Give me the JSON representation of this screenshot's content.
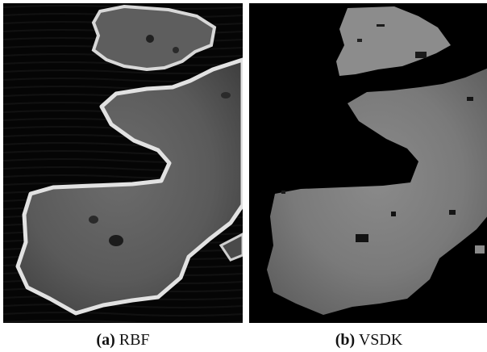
{
  "figure": {
    "panels": [
      {
        "id": "a",
        "tag": "(a)",
        "label": "RBF"
      },
      {
        "id": "b",
        "tag": "(b)",
        "label": "VSDK"
      }
    ]
  }
}
